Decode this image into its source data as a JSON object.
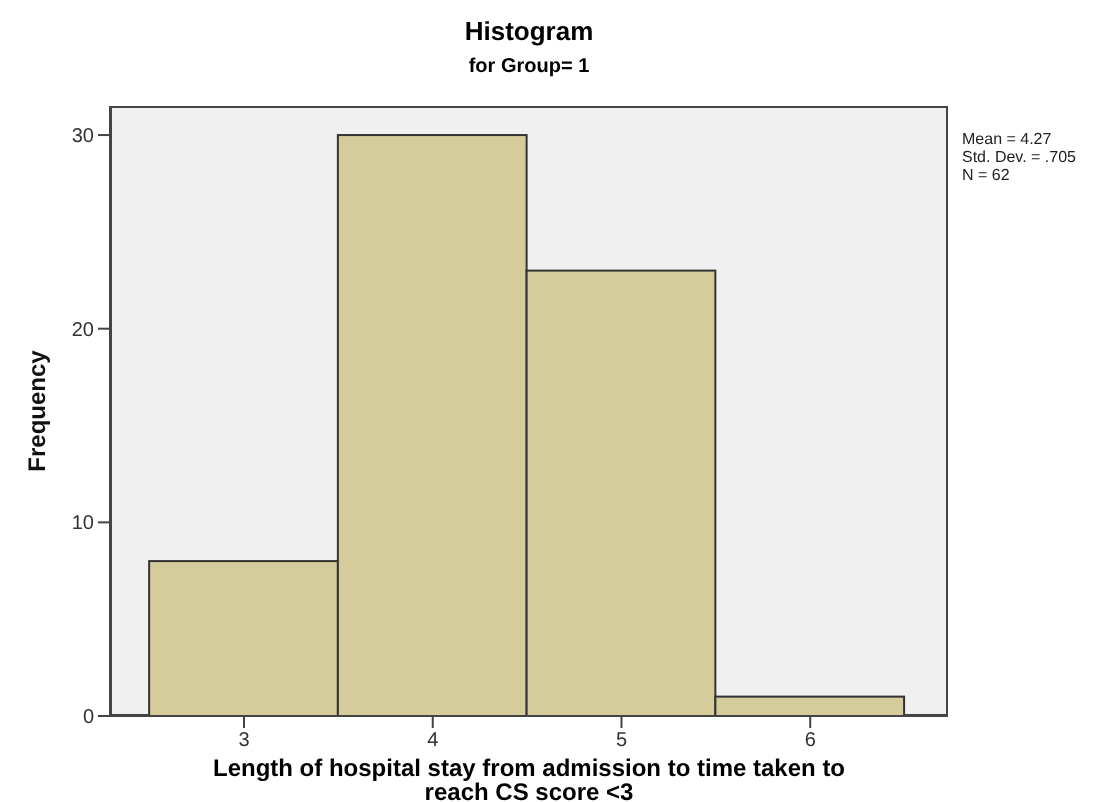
{
  "chart_data": {
    "type": "histogram",
    "title": "Histogram",
    "subtitle": "for Group= 1",
    "xlabel": "Length of hospital stay from admission to time taken to reach CS score <3",
    "ylabel": "Frequency",
    "bins": [
      2.5,
      3.5,
      4.5,
      5.5,
      6.5
    ],
    "values": [
      8,
      30,
      23,
      1
    ],
    "color": "#d4cc9a",
    "xlim": [
      2.29,
      6.73
    ],
    "xticks": [
      3,
      4,
      5,
      6
    ],
    "ylim": [
      0,
      31.5
    ],
    "yticks": [
      0,
      10,
      20,
      30
    ],
    "annotations": [
      "Mean = 4.27",
      "Std. Dev. = .705",
      "N = 62"
    ]
  }
}
